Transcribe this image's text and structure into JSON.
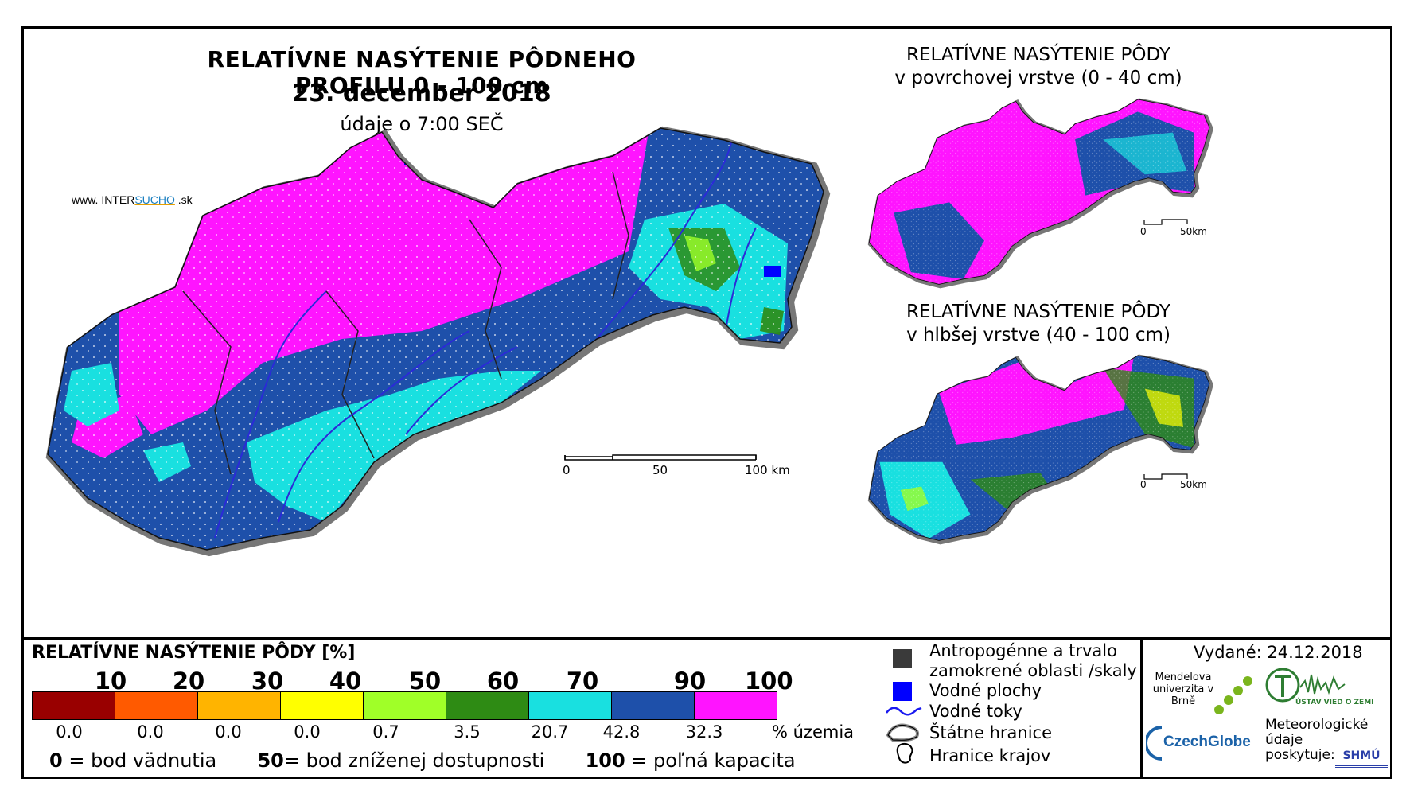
{
  "header": {
    "title": "RELATÍVNE NASÝTENIE PÔDNEHO PROFILU 0 - 100 cm",
    "date": "23. december 2018",
    "note": "údaje o 7:00 SEČ",
    "website_prefix": "www. INTER",
    "website_brand": "SUCHO",
    "website_suffix": " .sk"
  },
  "main_map": {
    "scale": {
      "l0": "0",
      "l50": "50",
      "l100": "100 km"
    }
  },
  "top_inset": {
    "title_line1": "RELATÍVNE NASÝTENIE PÔDY",
    "title_line2": "v povrchovej vrstve (0 - 40 cm)",
    "scale": {
      "l0": "0",
      "l50": "50km"
    }
  },
  "bottom_inset": {
    "title_line1": "RELATÍVNE NASÝTENIE PÔDY",
    "title_line2": "v hlbšej vrstve (40 - 100 cm)",
    "scale": {
      "l0": "0",
      "l50": "50km"
    }
  },
  "legend": {
    "title": "RELATÍVNE NASÝTENIE PÔDY [%]",
    "scale_labels": [
      "10",
      "20",
      "30",
      "40",
      "50",
      "60",
      "70",
      "90",
      "100"
    ],
    "colors": [
      "#990000",
      "#ff5a00",
      "#ffb400",
      "#ffff00",
      "#a0ff28",
      "#2e8b14",
      "#19e0e0",
      "#1e50aa",
      "#ff14ff"
    ],
    "percent_values": [
      "0.0",
      "0.0",
      "0.0",
      "0.0",
      "0.7",
      "3.5",
      "20.7",
      "42.8",
      "32.3"
    ],
    "percent_unit": "% územia",
    "def1_value": "0",
    "def1_text": " = bod vädnutia",
    "def2_value": "50",
    "def2_text": "= bod zníženej dostupnosti",
    "def3_value": "100",
    "def3_text": " = poľná kapacita"
  },
  "symbols": {
    "anthropogenic": "Antropogénne a trvalo zamokrené oblasti /skaly",
    "water_bodies": "Vodné plochy",
    "rivers": "Vodné toky",
    "borders": "Štátne hranice",
    "regions": "Hranice krajov"
  },
  "issued": {
    "text": "Vydané: 24.12.2018"
  },
  "logos": {
    "mendel": "Mendelova univerzita v Brně",
    "czechglobe": "CzechGlobe",
    "ustav": "ÚSTAV VIED O ZEMI",
    "meteo": "Meteorologické údaje poskytuje:",
    "shmu": "SHMÚ"
  }
}
